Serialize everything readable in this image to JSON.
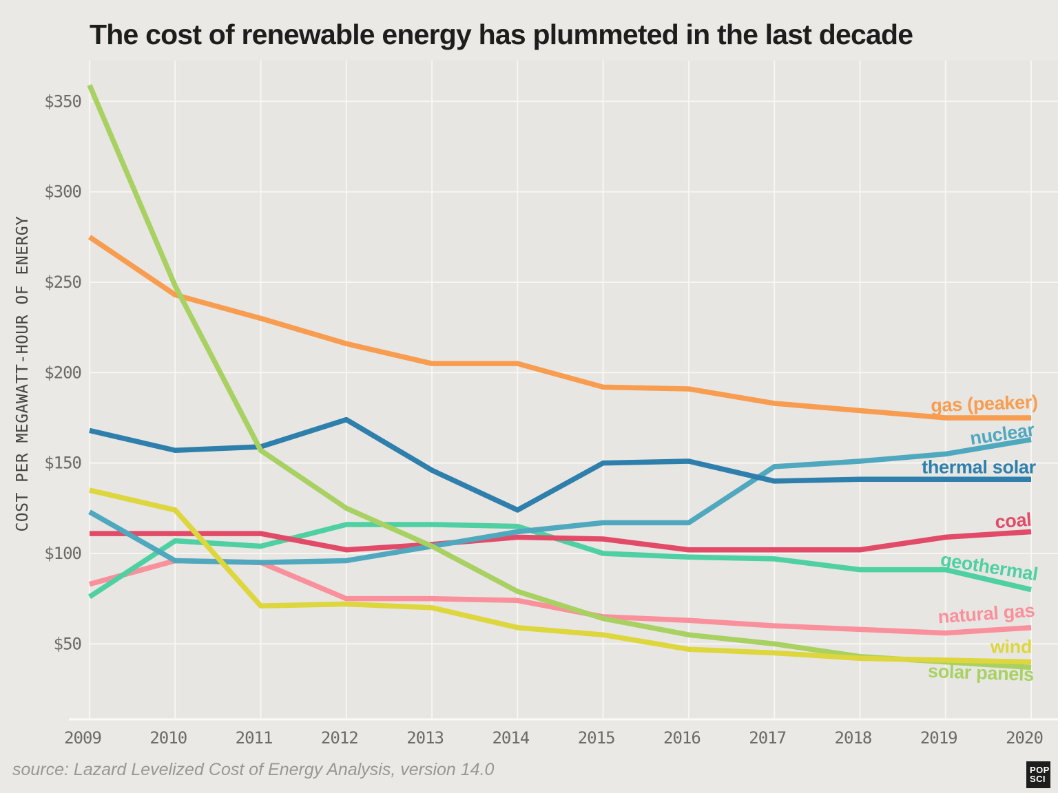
{
  "title": "The cost of renewable energy has plummeted in the last decade",
  "source_note": "source: Lazard Levelized Cost of Energy Analysis, version 14.0",
  "logo": {
    "line1": "POP",
    "line2": "SCI"
  },
  "chart_data": {
    "type": "line",
    "title": "The cost of renewable energy has plummeted in the last decade",
    "xlabel": "",
    "ylabel": "COST PER MEGAWATT-HOUR OF ENERGY",
    "x": [
      2009,
      2010,
      2011,
      2012,
      2013,
      2014,
      2015,
      2016,
      2017,
      2018,
      2019,
      2020
    ],
    "y_ticks": [
      50,
      100,
      150,
      200,
      250,
      300,
      350
    ],
    "y_tick_labels": [
      "$50",
      "$100",
      "$150",
      "$200",
      "$250",
      "$300",
      "$350"
    ],
    "ylim": [
      20,
      372
    ],
    "grid": true,
    "legend_position": "inline-right-labels",
    "background": "#e7e6e3",
    "gridline_color": "#f7f6f3",
    "series": [
      {
        "id": "gas_peaker",
        "label": "gas (peaker)",
        "color": "#f89c4f",
        "z": 6,
        "values": [
          275,
          243,
          230,
          216,
          205,
          205,
          192,
          191,
          183,
          179,
          175,
          175
        ]
      },
      {
        "id": "nuclear",
        "label": "nuclear",
        "color": "#4fa8be",
        "z": 4,
        "values": [
          123,
          96,
          95,
          96,
          104,
          112,
          117,
          117,
          148,
          151,
          155,
          163
        ]
      },
      {
        "id": "thermal_solar",
        "label": "thermal solar",
        "color": "#2e7fab",
        "z": 5,
        "values": [
          168,
          157,
          159,
          174,
          146,
          124,
          150,
          151,
          140,
          141,
          141,
          141
        ]
      },
      {
        "id": "coal",
        "label": "coal",
        "color": "#e24b67",
        "z": 3,
        "values": [
          111,
          111,
          111,
          102,
          105,
          109,
          108,
          102,
          102,
          102,
          109,
          112
        ]
      },
      {
        "id": "geothermal",
        "label": "geothermal",
        "color": "#4fd0a2",
        "z": 2,
        "values": [
          76,
          107,
          104,
          116,
          116,
          115,
          100,
          98,
          97,
          91,
          91,
          80
        ]
      },
      {
        "id": "natural_gas",
        "label": "natural gas",
        "color": "#f9909b",
        "z": 1,
        "values": [
          83,
          96,
          95,
          75,
          75,
          74,
          65,
          63,
          60,
          58,
          56,
          59
        ]
      },
      {
        "id": "wind",
        "label": "wind",
        "color": "#ddd63c",
        "z": 8,
        "values": [
          135,
          124,
          71,
          72,
          70,
          59,
          55,
          47,
          45,
          42,
          41,
          40
        ]
      },
      {
        "id": "solar_panels",
        "label": "solar panels",
        "color": "#a8d162",
        "z": 7,
        "values": [
          359,
          248,
          157,
          125,
          104,
          79,
          64,
          55,
          50,
          43,
          40,
          37
        ]
      }
    ]
  }
}
